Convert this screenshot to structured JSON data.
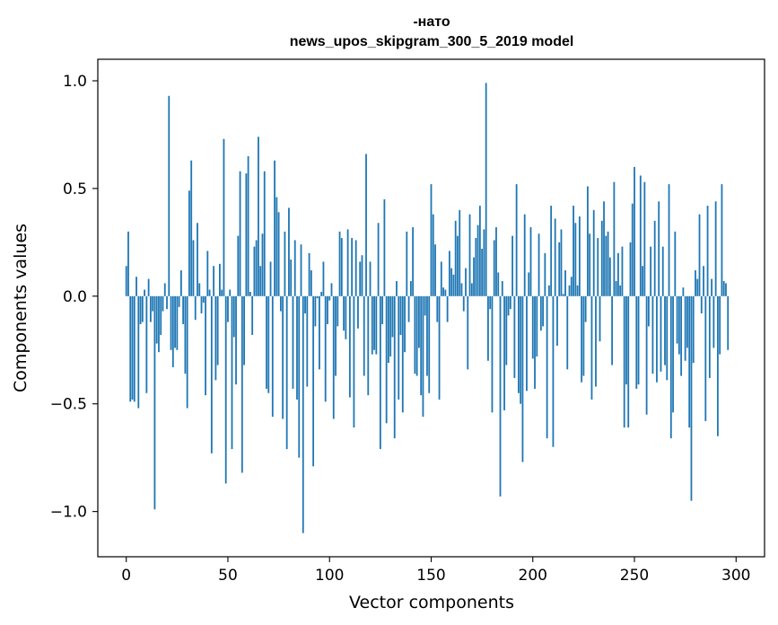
{
  "chart_data": {
    "type": "bar",
    "title_line1": "-нато",
    "title_line2": "news_upos_skipgram_300_5_2019 model",
    "xlabel": "Vector components",
    "ylabel": "Components values",
    "xlim": [
      -14,
      314
    ],
    "ylim": [
      -1.21,
      1.1
    ],
    "x_ticks": [
      0,
      50,
      100,
      150,
      200,
      250,
      300
    ],
    "x_tick_labels": [
      "0",
      "50",
      "100",
      "150",
      "200",
      "250",
      "300"
    ],
    "y_ticks": [
      -1.0,
      -0.5,
      0.0,
      0.5,
      1.0
    ],
    "y_tick_labels": [
      "−1.0",
      "−0.5",
      "0.0",
      "0.5",
      "1.0"
    ],
    "grid": false,
    "bar_color": "#1f77b4",
    "values": [
      0.14,
      0.3,
      -0.49,
      -0.48,
      -0.49,
      0.09,
      -0.52,
      -0.13,
      -0.12,
      0.03,
      -0.45,
      0.08,
      -0.12,
      -0.07,
      -0.99,
      -0.22,
      -0.26,
      -0.18,
      -0.07,
      0.06,
      -0.06,
      0.93,
      -0.25,
      -0.33,
      -0.24,
      -0.25,
      -0.05,
      0.12,
      -0.13,
      -0.36,
      -0.52,
      0.49,
      0.63,
      0.26,
      -0.11,
      0.34,
      0.06,
      -0.08,
      -0.03,
      -0.46,
      0.21,
      0.03,
      -0.73,
      0.14,
      -0.39,
      -0.32,
      0.15,
      0.03,
      0.73,
      -0.87,
      -0.12,
      0.03,
      -0.71,
      -0.19,
      -0.41,
      0.28,
      0.58,
      -0.82,
      -0.32,
      0.57,
      0.65,
      0.02,
      -0.18,
      0.23,
      0.26,
      0.74,
      0.14,
      0.29,
      0.58,
      -0.43,
      -0.45,
      0.16,
      -0.56,
      0.63,
      0.46,
      0.39,
      -0.07,
      -0.57,
      0.3,
      -0.71,
      0.41,
      0.17,
      -0.43,
      0.26,
      -0.48,
      -0.75,
      0.24,
      -1.1,
      -0.08,
      -0.42,
      0.2,
      0.12,
      -0.79,
      -0.14,
      -0.01,
      -0.34,
      0.02,
      0.16,
      -0.49,
      -0.13,
      -0.02,
      0.06,
      -0.57,
      -0.37,
      -0.14,
      0.3,
      0.27,
      -0.16,
      -0.2,
      0.31,
      -0.47,
      0.27,
      -0.61,
      0.26,
      -0.15,
      0.16,
      0.19,
      -0.37,
      0.66,
      -0.46,
      0.16,
      -0.27,
      -0.25,
      -0.27,
      0.34,
      -0.71,
      -0.13,
      0.45,
      -0.59,
      -0.31,
      -0.28,
      -0.19,
      -0.66,
      0.07,
      -0.48,
      -0.18,
      -0.54,
      -0.26,
      0.3,
      -0.12,
      0.07,
      0.32,
      -0.36,
      -0.37,
      -0.24,
      -0.46,
      -0.56,
      -0.09,
      -0.37,
      -0.45,
      0.52,
      0.38,
      0.24,
      -0.12,
      -0.48,
      0.16,
      0.04,
      0.03,
      -0.12,
      0.21,
      0.13,
      0.1,
      0.35,
      0.28,
      0.4,
      0.06,
      -0.07,
      0.13,
      -0.34,
      0.38,
      0.06,
      0.18,
      0.27,
      0.33,
      0.42,
      0.22,
      0.31,
      0.99,
      -0.3,
      -0.06,
      -0.54,
      0.26,
      0.32,
      0.11,
      -0.93,
      0.07,
      -0.53,
      -0.32,
      -0.09,
      -0.06,
      0.28,
      -0.38,
      0.52,
      -0.45,
      -0.5,
      -0.77,
      0.38,
      -0.44,
      0.11,
      0.32,
      -0.29,
      -0.43,
      -0.28,
      0.29,
      -0.16,
      -0.14,
      0.2,
      -0.66,
      0.05,
      0.42,
      -0.7,
      0.36,
      -0.23,
      0.25,
      0.31,
      0.01,
      0.12,
      -0.34,
      0.05,
      0.09,
      0.42,
      0.34,
      0.05,
      0.37,
      -0.4,
      -0.37,
      -0.12,
      0.51,
      0.29,
      -0.48,
      0.4,
      -0.42,
      0.27,
      -0.21,
      0.35,
      0.44,
      0.28,
      0.3,
      0.18,
      -0.32,
      0.53,
      0.07,
      0.2,
      0.05,
      0.23,
      -0.61,
      -0.41,
      -0.61,
      0.25,
      0.43,
      0.6,
      -0.43,
      -0.41,
      0.56,
      0.14,
      0.53,
      -0.55,
      -0.14,
      0.23,
      -0.36,
      0.35,
      -0.4,
      0.44,
      -0.35,
      0.23,
      -0.32,
      -0.39,
      0.52,
      -0.66,
      -0.54,
      0.3,
      -0.22,
      -0.27,
      -0.37,
      0.04,
      -0.3,
      -0.24,
      -0.61,
      -0.95,
      -0.31,
      0.12,
      0.08,
      0.38,
      -0.08,
      0.14,
      -0.58,
      0.42,
      -0.38,
      0.08,
      -0.24,
      0.44,
      -0.65,
      -0.27,
      0.52,
      0.07,
      0.06,
      -0.25
    ]
  }
}
